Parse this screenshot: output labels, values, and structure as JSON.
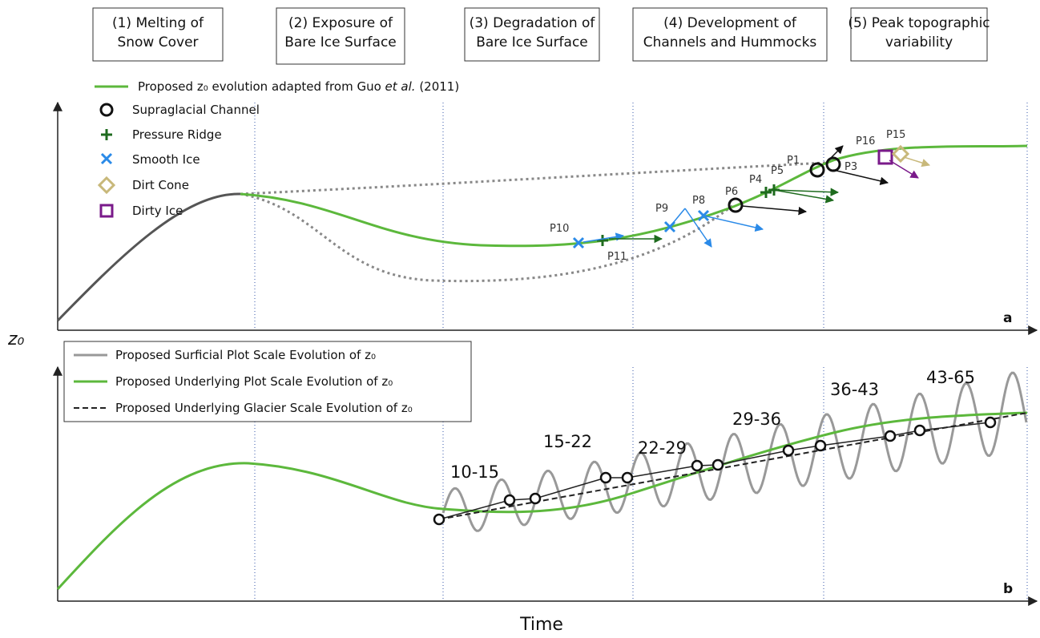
{
  "stages": [
    {
      "lines": [
        "(1) Melting of",
        "Snow Cover"
      ]
    },
    {
      "lines": [
        "(2) Exposure of",
        "Bare Ice Surface"
      ]
    },
    {
      "lines": [
        "(3) Degradation of",
        "Bare Ice Surface"
      ]
    },
    {
      "lines": [
        "(4) Development of",
        "Channels and Hummocks"
      ]
    },
    {
      "lines": [
        "(5) Peak topographic",
        "variability"
      ]
    }
  ],
  "panel_a": {
    "legend_title": [
      "Proposed z₀ evolution adapted from Guo",
      "et al.",
      "(2011)"
    ],
    "legend": [
      "Supraglacial Channel",
      "Pressure Ridge",
      "Smooth Ice",
      "Dirt Cone",
      "Dirty Ice"
    ],
    "points": [
      "P1",
      "P3",
      "P4",
      "P5",
      "P6",
      "P8",
      "P9",
      "P10",
      "P11",
      "P15",
      "P16"
    ],
    "letter": "a"
  },
  "panel_b": {
    "legend": [
      "Proposed Surficial Plot Scale Evolution of z₀",
      "Proposed Underlying Plot Scale Evolution of z₀",
      "Proposed Underlying Glacier Scale Evolution of z₀"
    ],
    "ranges": [
      "10-15",
      "15-22",
      "22-29",
      "29-36",
      "36-43",
      "43-65"
    ],
    "letter": "b"
  },
  "y_label": "z₀",
  "x_label": "Time"
}
